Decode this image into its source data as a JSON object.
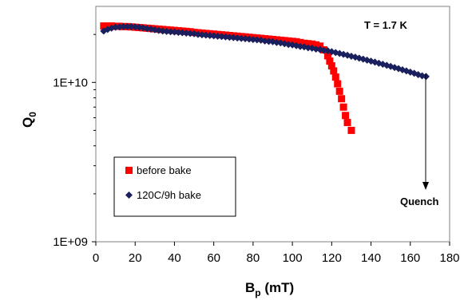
{
  "chart_data": {
    "type": "scatter",
    "xlabel": "B",
    "xlabel_sub": "p",
    "xlabel_unit": " (mT)",
    "ylabel": "Q",
    "ylabel_sub": "0",
    "xlim": [
      0,
      180
    ],
    "ylim": [
      1000000000.0,
      30000000000.0
    ],
    "yscale": "log",
    "x_ticks": [
      0,
      20,
      40,
      60,
      80,
      100,
      120,
      140,
      160,
      180
    ],
    "x_tick_labels": [
      "0",
      "20",
      "40",
      "60",
      "80",
      "100",
      "120",
      "140",
      "160",
      "180"
    ],
    "y_ticks": [
      1000000000.0,
      10000000000.0
    ],
    "y_tick_labels": [
      "1E+09",
      "1E+10"
    ],
    "grid": false,
    "legend_position": "lower-left",
    "annotations": [
      {
        "text": "T = 1.7 K"
      },
      {
        "text": "Quench"
      }
    ],
    "series": [
      {
        "name": "before bake",
        "marker": "square",
        "color": "#ff0000",
        "points": [
          [
            4,
            22600000000.0
          ],
          [
            6,
            22600000000.0
          ],
          [
            8,
            22600000000.0
          ],
          [
            10,
            22500000000.0
          ],
          [
            12,
            22500000000.0
          ],
          [
            14,
            22400000000.0
          ],
          [
            16,
            22400000000.0
          ],
          [
            18,
            22300000000.0
          ],
          [
            20,
            22200000000.0
          ],
          [
            22,
            22100000000.0
          ],
          [
            24,
            22000000000.0
          ],
          [
            26,
            21900000000.0
          ],
          [
            28,
            21800000000.0
          ],
          [
            30,
            21700000000.0
          ],
          [
            32,
            21600000000.0
          ],
          [
            34,
            21500000000.0
          ],
          [
            36,
            21400000000.0
          ],
          [
            38,
            21300000000.0
          ],
          [
            40,
            21200000000.0
          ],
          [
            42,
            21100000000.0
          ],
          [
            44,
            21000000000.0
          ],
          [
            46,
            20900000000.0
          ],
          [
            48,
            20800000000.0
          ],
          [
            50,
            20600000000.0
          ],
          [
            52,
            20500000000.0
          ],
          [
            54,
            20400000000.0
          ],
          [
            56,
            20300000000.0
          ],
          [
            58,
            20200000000.0
          ],
          [
            60,
            20100000000.0
          ],
          [
            62,
            20000000000.0
          ],
          [
            64,
            19900000000.0
          ],
          [
            66,
            19800000000.0
          ],
          [
            68,
            19700000000.0
          ],
          [
            70,
            19600000000.0
          ],
          [
            72,
            19500000000.0
          ],
          [
            74,
            19400000000.0
          ],
          [
            76,
            19300000000.0
          ],
          [
            78,
            19200000000.0
          ],
          [
            80,
            19100000000.0
          ],
          [
            82,
            19000000000.0
          ],
          [
            84,
            18900000000.0
          ],
          [
            86,
            18800000000.0
          ],
          [
            88,
            18700000000.0
          ],
          [
            90,
            18600000000.0
          ],
          [
            92,
            18500000000.0
          ],
          [
            94,
            18400000000.0
          ],
          [
            96,
            18300000000.0
          ],
          [
            98,
            18200000000.0
          ],
          [
            100,
            18100000000.0
          ],
          [
            102,
            18000000000.0
          ],
          [
            104,
            17800000000.0
          ],
          [
            106,
            17600000000.0
          ],
          [
            108,
            17500000000.0
          ],
          [
            110,
            17400000000.0
          ],
          [
            112,
            17200000000.0
          ],
          [
            114,
            16900000000.0
          ],
          [
            116,
            16000000000.0
          ],
          [
            118,
            14700000000.0
          ],
          [
            119,
            13600000000.0
          ],
          [
            120,
            12700000000.0
          ],
          [
            121,
            11800000000.0
          ],
          [
            122,
            10800000000.0
          ],
          [
            123,
            9800000000.0
          ],
          [
            124,
            8800000000.0
          ],
          [
            125,
            7900000000.0
          ],
          [
            126,
            7000000000.0
          ],
          [
            127,
            6200000000.0
          ],
          [
            128,
            5600000000.0
          ],
          [
            130,
            5000000000.0
          ]
        ]
      },
      {
        "name": "120C/9h bake",
        "marker": "diamond",
        "color": "#1a1f5e",
        "points": [
          [
            4,
            21000000000.0
          ],
          [
            6,
            21500000000.0
          ],
          [
            8,
            21900000000.0
          ],
          [
            10,
            22200000000.0
          ],
          [
            12,
            22300000000.0
          ],
          [
            14,
            22400000000.0
          ],
          [
            16,
            22400000000.0
          ],
          [
            18,
            22400000000.0
          ],
          [
            20,
            22300000000.0
          ],
          [
            22,
            22200000000.0
          ],
          [
            24,
            22000000000.0
          ],
          [
            26,
            21800000000.0
          ],
          [
            28,
            21600000000.0
          ],
          [
            30,
            21400000000.0
          ],
          [
            32,
            21200000000.0
          ],
          [
            34,
            21000000000.0
          ],
          [
            36,
            20900000000.0
          ],
          [
            38,
            20800000000.0
          ],
          [
            40,
            20700000000.0
          ],
          [
            42,
            20600000000.0
          ],
          [
            44,
            20500000000.0
          ],
          [
            46,
            20400000000.0
          ],
          [
            48,
            20300000000.0
          ],
          [
            50,
            20200000000.0
          ],
          [
            52,
            20000000000.0
          ],
          [
            54,
            19900000000.0
          ],
          [
            56,
            19800000000.0
          ],
          [
            58,
            19700000000.0
          ],
          [
            60,
            19600000000.0
          ],
          [
            62,
            19500000000.0
          ],
          [
            64,
            19400000000.0
          ],
          [
            66,
            19300000000.0
          ],
          [
            68,
            19200000000.0
          ],
          [
            70,
            19100000000.0
          ],
          [
            72,
            19000000000.0
          ],
          [
            74,
            18900000000.0
          ],
          [
            76,
            18800000000.0
          ],
          [
            78,
            18700000000.0
          ],
          [
            80,
            18600000000.0
          ],
          [
            82,
            18500000000.0
          ],
          [
            84,
            18400000000.0
          ],
          [
            86,
            18200000000.0
          ],
          [
            88,
            18100000000.0
          ],
          [
            90,
            18000000000.0
          ],
          [
            92,
            17800000000.0
          ],
          [
            94,
            17700000000.0
          ],
          [
            96,
            17500000000.0
          ],
          [
            98,
            17300000000.0
          ],
          [
            100,
            17200000000.0
          ],
          [
            102,
            17000000000.0
          ],
          [
            104,
            16800000000.0
          ],
          [
            106,
            16700000000.0
          ],
          [
            108,
            16500000000.0
          ],
          [
            110,
            16400000000.0
          ],
          [
            112,
            16200000000.0
          ],
          [
            114,
            16100000000.0
          ],
          [
            116,
            15900000000.0
          ],
          [
            118,
            15800000000.0
          ],
          [
            120,
            15600000000.0
          ],
          [
            122,
            15400000000.0
          ],
          [
            124,
            15200000000.0
          ],
          [
            126,
            15000000000.0
          ],
          [
            128,
            14800000000.0
          ],
          [
            130,
            14600000000.0
          ],
          [
            132,
            14400000000.0
          ],
          [
            134,
            14200000000.0
          ],
          [
            136,
            14000000000.0
          ],
          [
            138,
            13800000000.0
          ],
          [
            140,
            13600000000.0
          ],
          [
            142,
            13400000000.0
          ],
          [
            144,
            13200000000.0
          ],
          [
            146,
            13000000000.0
          ],
          [
            148,
            12800000000.0
          ],
          [
            150,
            12600000000.0
          ],
          [
            152,
            12400000000.0
          ],
          [
            154,
            12200000000.0
          ],
          [
            156,
            12000000000.0
          ],
          [
            158,
            11800000000.0
          ],
          [
            160,
            11600000000.0
          ],
          [
            162,
            11400000000.0
          ],
          [
            164,
            11200000000.0
          ],
          [
            166,
            11000000000.0
          ],
          [
            168,
            10900000000.0
          ]
        ]
      }
    ]
  }
}
